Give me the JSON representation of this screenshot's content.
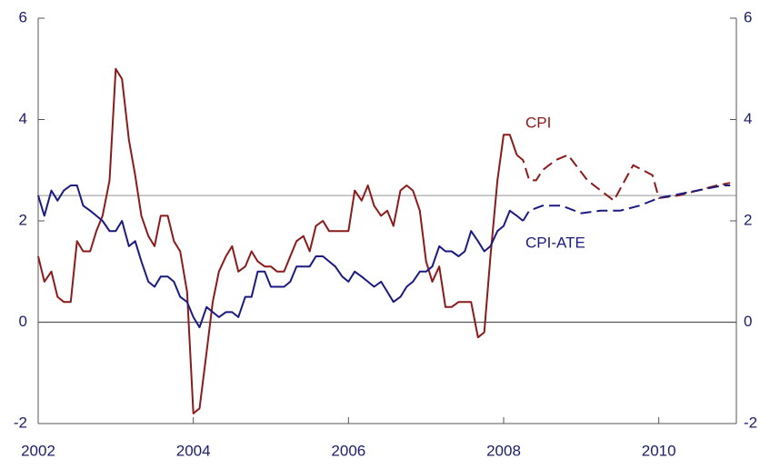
{
  "chart_data": {
    "type": "line",
    "xlim": [
      2002,
      2011
    ],
    "xticks": [
      2002,
      2004,
      2006,
      2008,
      2010
    ],
    "ylim": [
      -2,
      6
    ],
    "yticks": [
      -2,
      0,
      2,
      4,
      6
    ],
    "y2lim": [
      -2,
      6
    ],
    "y2ticks": [
      -2,
      0,
      2,
      4,
      6
    ],
    "hlines": [
      {
        "value": 0,
        "color": "#555555"
      },
      {
        "value": 2.5,
        "color": "#aaaaaa"
      }
    ],
    "series": [
      {
        "name": "CPI",
        "color": "#8b1a1a",
        "x": [
          2002.0,
          2002.08,
          2002.17,
          2002.25,
          2002.33,
          2002.42,
          2002.5,
          2002.58,
          2002.67,
          2002.75,
          2002.83,
          2002.92,
          2003.0,
          2003.08,
          2003.17,
          2003.25,
          2003.33,
          2003.42,
          2003.5,
          2003.58,
          2003.67,
          2003.75,
          2003.83,
          2003.92,
          2004.0,
          2004.08,
          2004.17,
          2004.25,
          2004.33,
          2004.42,
          2004.5,
          2004.58,
          2004.67,
          2004.75,
          2004.83,
          2004.92,
          2005.0,
          2005.08,
          2005.17,
          2005.25,
          2005.33,
          2005.42,
          2005.5,
          2005.58,
          2005.67,
          2005.75,
          2005.83,
          2005.92,
          2006.0,
          2006.08,
          2006.17,
          2006.25,
          2006.33,
          2006.42,
          2006.5,
          2006.58,
          2006.67,
          2006.75,
          2006.83,
          2006.92,
          2007.0,
          2007.08,
          2007.17,
          2007.25,
          2007.33,
          2007.42,
          2007.5,
          2007.58,
          2007.67,
          2007.75,
          2007.83,
          2007.92,
          2008.0,
          2008.08,
          2008.17
        ],
        "values": [
          1.3,
          0.8,
          1.0,
          0.5,
          0.4,
          0.4,
          1.6,
          1.4,
          1.4,
          1.8,
          2.1,
          2.8,
          5.0,
          4.8,
          3.6,
          2.9,
          2.1,
          1.7,
          1.5,
          2.1,
          2.1,
          1.6,
          1.4,
          0.6,
          -1.8,
          -1.7,
          -0.6,
          0.4,
          1.0,
          1.3,
          1.5,
          1.0,
          1.1,
          1.4,
          1.2,
          1.1,
          1.1,
          1.0,
          1.0,
          1.3,
          1.6,
          1.7,
          1.4,
          1.9,
          2.0,
          1.8,
          1.8,
          1.8,
          1.8,
          2.6,
          2.4,
          2.7,
          2.3,
          2.1,
          2.2,
          1.9,
          2.6,
          2.7,
          2.6,
          2.2,
          1.2,
          0.8,
          1.1,
          0.3,
          0.3,
          0.4,
          0.4,
          0.4,
          -0.3,
          -0.2,
          1.3,
          2.8,
          3.7,
          3.7,
          3.3
        ],
        "forecast_x": [
          2008.17,
          2008.25,
          2008.33,
          2008.42,
          2008.5,
          2008.67,
          2008.83,
          2009.08,
          2009.42,
          2009.67,
          2009.92,
          2010.0,
          2010.25,
          2010.5,
          2010.75,
          2010.92
        ],
        "forecast_values": [
          3.3,
          3.2,
          2.8,
          2.8,
          3.0,
          3.2,
          3.3,
          2.8,
          2.4,
          3.1,
          2.9,
          2.45,
          2.5,
          2.6,
          2.7,
          2.75
        ]
      },
      {
        "name": "CPI-ATE",
        "color": "#1a1a80",
        "x": [
          2002.0,
          2002.08,
          2002.17,
          2002.25,
          2002.33,
          2002.42,
          2002.5,
          2002.58,
          2002.67,
          2002.75,
          2002.83,
          2002.92,
          2003.0,
          2003.08,
          2003.17,
          2003.25,
          2003.33,
          2003.42,
          2003.5,
          2003.58,
          2003.67,
          2003.75,
          2003.83,
          2003.92,
          2004.0,
          2004.08,
          2004.17,
          2004.25,
          2004.33,
          2004.42,
          2004.5,
          2004.58,
          2004.67,
          2004.75,
          2004.83,
          2004.92,
          2005.0,
          2005.08,
          2005.17,
          2005.25,
          2005.33,
          2005.42,
          2005.5,
          2005.58,
          2005.67,
          2005.75,
          2005.83,
          2005.92,
          2006.0,
          2006.08,
          2006.17,
          2006.25,
          2006.33,
          2006.42,
          2006.5,
          2006.58,
          2006.67,
          2006.75,
          2006.83,
          2006.92,
          2007.0,
          2007.08,
          2007.17,
          2007.25,
          2007.33,
          2007.42,
          2007.5,
          2007.58,
          2007.67,
          2007.75,
          2007.83,
          2007.92,
          2008.0,
          2008.08,
          2008.17,
          2008.25
        ],
        "values": [
          2.5,
          2.1,
          2.6,
          2.4,
          2.6,
          2.7,
          2.7,
          2.3,
          2.2,
          2.1,
          2.0,
          1.8,
          1.8,
          2.0,
          1.5,
          1.6,
          1.2,
          0.8,
          0.7,
          0.9,
          0.9,
          0.8,
          0.5,
          0.4,
          0.1,
          -0.1,
          0.3,
          0.2,
          0.1,
          0.2,
          0.2,
          0.1,
          0.5,
          0.5,
          1.0,
          1.0,
          0.7,
          0.7,
          0.7,
          0.8,
          1.1,
          1.1,
          1.1,
          1.3,
          1.3,
          1.2,
          1.1,
          0.9,
          0.8,
          1.0,
          0.9,
          0.8,
          0.7,
          0.8,
          0.6,
          0.4,
          0.5,
          0.7,
          0.8,
          1.0,
          1.0,
          1.1,
          1.5,
          1.4,
          1.4,
          1.3,
          1.4,
          1.8,
          1.6,
          1.4,
          1.5,
          1.8,
          1.9,
          2.2,
          2.1,
          2.0
        ],
        "forecast_x": [
          2008.25,
          2008.33,
          2008.5,
          2008.75,
          2009.0,
          2009.25,
          2009.5,
          2009.75,
          2010.0,
          2010.5,
          2010.83,
          2010.92
        ],
        "forecast_values": [
          2.0,
          2.2,
          2.3,
          2.3,
          2.15,
          2.2,
          2.2,
          2.3,
          2.45,
          2.6,
          2.7,
          2.7
        ]
      }
    ]
  }
}
